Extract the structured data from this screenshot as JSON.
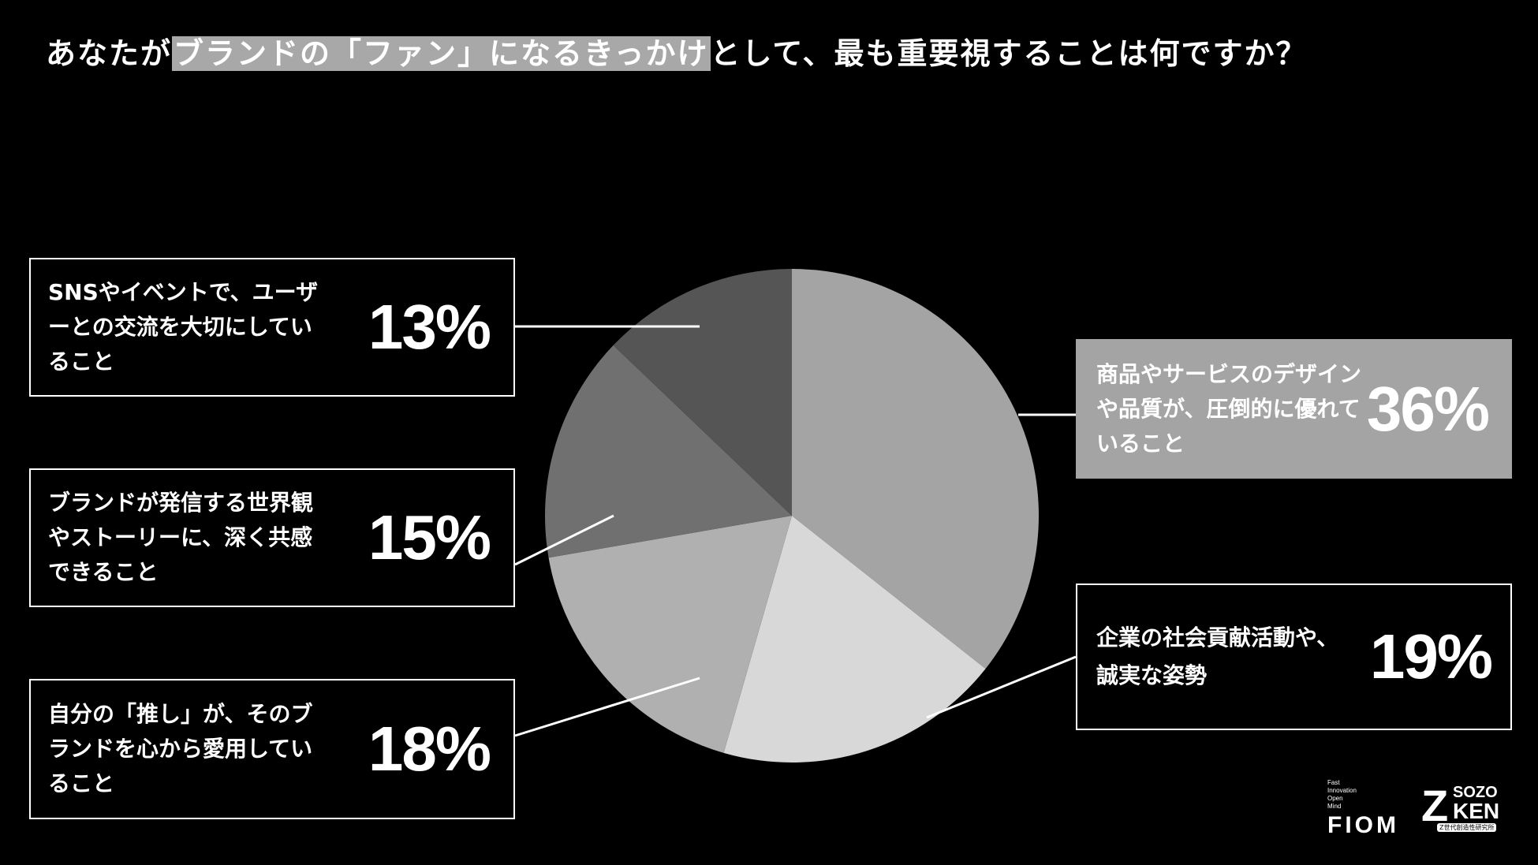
{
  "title": {
    "pre": "あなたが",
    "highlight": "ブランドの「ファン」になるきっかけ",
    "post": "として、最も重要視することは何ですか？"
  },
  "colors": {
    "background": "#000000",
    "slice_36": "#a4a4a4",
    "slice_19": "#d8d8d8",
    "slice_18": "#b0b0b0",
    "slice_15": "#707070",
    "slice_13": "#555555",
    "highlight_box": "#a4a4a4"
  },
  "callouts": {
    "sns": {
      "text": "SNSやイベントで、ユーザーとの交流を大切にしていること",
      "pct": "13%"
    },
    "world": {
      "text": "ブランドが発信する世界観やストーリーに、深く共感できること",
      "pct": "15%"
    },
    "oshi": {
      "text": "自分の「推し」が、そのブランドを心から愛用していること",
      "pct": "18%"
    },
    "design": {
      "text": "商品やサービスのデザインや品質が、圧倒的に優れていること",
      "pct": "36%"
    },
    "csr": {
      "text": "企業の社会貢献活動や、誠実な姿勢",
      "pct": "19%"
    }
  },
  "chart_data": {
    "type": "pie",
    "title": "あなたがブランドの「ファン」になるきっかけとして、最も重要視することは何ですか？",
    "slices": [
      {
        "label": "商品やサービスのデザインや品質が、圧倒的に優れていること",
        "value": 36,
        "color": "#a4a4a4"
      },
      {
        "label": "企業の社会貢献活動や、誠実な姿勢",
        "value": 19,
        "color": "#d8d8d8"
      },
      {
        "label": "自分の「推し」が、そのブランドを心から愛用していること",
        "value": 18,
        "color": "#b0b0b0"
      },
      {
        "label": "ブランドが発信する世界観やストーリーに、深く共感できること",
        "value": 15,
        "color": "#707070"
      },
      {
        "label": "SNSやイベントで、ユーザーとの交流を大切にしていること",
        "value": 13,
        "color": "#555555"
      }
    ]
  },
  "logos": {
    "fiom_small": [
      "Fast",
      "Innovation",
      "Open",
      "Mind"
    ],
    "fiom": "FIOM",
    "z": "Z",
    "sozo": "SOZO",
    "ken": "KEN",
    "z_sub": "Z世代創造性研究所"
  }
}
